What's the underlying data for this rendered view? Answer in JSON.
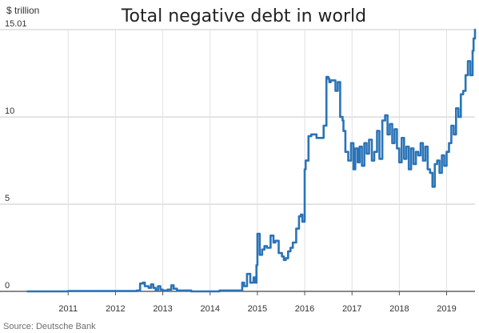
{
  "chart_data": {
    "type": "line",
    "title": "Total negative debt in world",
    "ylabel": "$ trillion",
    "xlabel": "",
    "source": "Source: Deutsche Bank",
    "ylim": [
      0,
      15.01
    ],
    "xlim": [
      2010.1,
      2019.6
    ],
    "y_ticks": [
      {
        "value": 0,
        "label": "0"
      },
      {
        "value": 5,
        "label": "5"
      },
      {
        "value": 10,
        "label": "10"
      },
      {
        "value": 15.01,
        "label": "15.01"
      }
    ],
    "x_ticks": [
      {
        "value": 2011,
        "label": "2011"
      },
      {
        "value": 2012,
        "label": "2012"
      },
      {
        "value": 2013,
        "label": "2013"
      },
      {
        "value": 2014,
        "label": "2014"
      },
      {
        "value": 2015,
        "label": "2015"
      },
      {
        "value": 2016,
        "label": "2016"
      },
      {
        "value": 2017,
        "label": "2017"
      },
      {
        "value": 2018,
        "label": "2018"
      },
      {
        "value": 2019,
        "label": "2019"
      }
    ],
    "grid": true,
    "legend": "none",
    "series": [
      {
        "color": "#2a73b8",
        "x": [
          2010.14,
          2010.6,
          2011.0,
          2011.5,
          2012.0,
          2012.45,
          2012.52,
          2012.58,
          2012.62,
          2012.7,
          2012.75,
          2012.8,
          2012.85,
          2012.9,
          2012.95,
          2013.0,
          2013.1,
          2013.18,
          2013.23,
          2013.3,
          2013.4,
          2013.6,
          2013.9,
          2014.2,
          2014.4,
          2014.6,
          2014.68,
          2014.72,
          2014.78,
          2014.85,
          2014.92,
          2014.96,
          2014.98,
          2015.0,
          2015.05,
          2015.1,
          2015.15,
          2015.2,
          2015.28,
          2015.34,
          2015.38,
          2015.45,
          2015.52,
          2015.56,
          2015.6,
          2015.65,
          2015.7,
          2015.75,
          2015.82,
          2015.88,
          2015.92,
          2015.95,
          2016.0,
          2016.02,
          2016.08,
          2016.14,
          2016.25,
          2016.4,
          2016.46,
          2016.5,
          2016.52,
          2016.55,
          2016.65,
          2016.7,
          2016.75,
          2016.8,
          2016.82,
          2016.86,
          2016.92,
          2016.98,
          2017.03,
          2017.07,
          2017.12,
          2017.16,
          2017.21,
          2017.26,
          2017.31,
          2017.36,
          2017.42,
          2017.47,
          2017.53,
          2017.58,
          2017.64,
          2017.7,
          2017.75,
          2017.8,
          2017.85,
          2017.9,
          2017.95,
          2018.0,
          2018.05,
          2018.1,
          2018.15,
          2018.2,
          2018.25,
          2018.3,
          2018.35,
          2018.4,
          2018.45,
          2018.5,
          2018.55,
          2018.6,
          2018.65,
          2018.7,
          2018.75,
          2018.8,
          2018.85,
          2018.9,
          2018.95,
          2019.0,
          2019.05,
          2019.1,
          2019.15,
          2019.2,
          2019.25,
          2019.3,
          2019.35,
          2019.4,
          2019.45,
          2019.5,
          2019.55,
          2019.57,
          2019.6
        ],
        "y": [
          0.0,
          0.0,
          0.02,
          0.02,
          0.02,
          0.05,
          0.45,
          0.5,
          0.3,
          0.2,
          0.4,
          0.2,
          0.05,
          0.3,
          0.1,
          0.05,
          0.1,
          0.35,
          0.15,
          0.05,
          0.05,
          0.0,
          0.0,
          0.05,
          0.05,
          0.05,
          0.5,
          0.3,
          1.0,
          0.5,
          0.8,
          0.5,
          1.5,
          3.3,
          2.1,
          2.4,
          2.6,
          2.5,
          3.2,
          2.8,
          2.9,
          2.2,
          2.0,
          1.8,
          1.9,
          2.3,
          2.5,
          2.8,
          3.6,
          4.3,
          4.4,
          4.0,
          7.0,
          7.5,
          8.9,
          9.0,
          8.8,
          9.5,
          12.3,
          12.2,
          12.0,
          12.1,
          11.5,
          12.0,
          10.0,
          9.8,
          9.2,
          8.0,
          7.5,
          8.5,
          7.0,
          8.2,
          7.4,
          8.3,
          7.2,
          8.5,
          7.9,
          8.7,
          7.5,
          8.0,
          9.2,
          7.6,
          9.8,
          10.1,
          9.0,
          9.6,
          8.5,
          9.3,
          8.2,
          7.4,
          8.8,
          7.6,
          8.3,
          7.0,
          8.2,
          7.3,
          8.0,
          7.8,
          8.5,
          7.5,
          8.3,
          7.0,
          6.8,
          6.0,
          7.3,
          7.5,
          6.8,
          7.8,
          7.2,
          8.0,
          8.5,
          9.5,
          9.0,
          10.5,
          10.0,
          11.3,
          11.5,
          12.4,
          13.2,
          12.4,
          13.8,
          14.5,
          15.01
        ]
      }
    ]
  }
}
